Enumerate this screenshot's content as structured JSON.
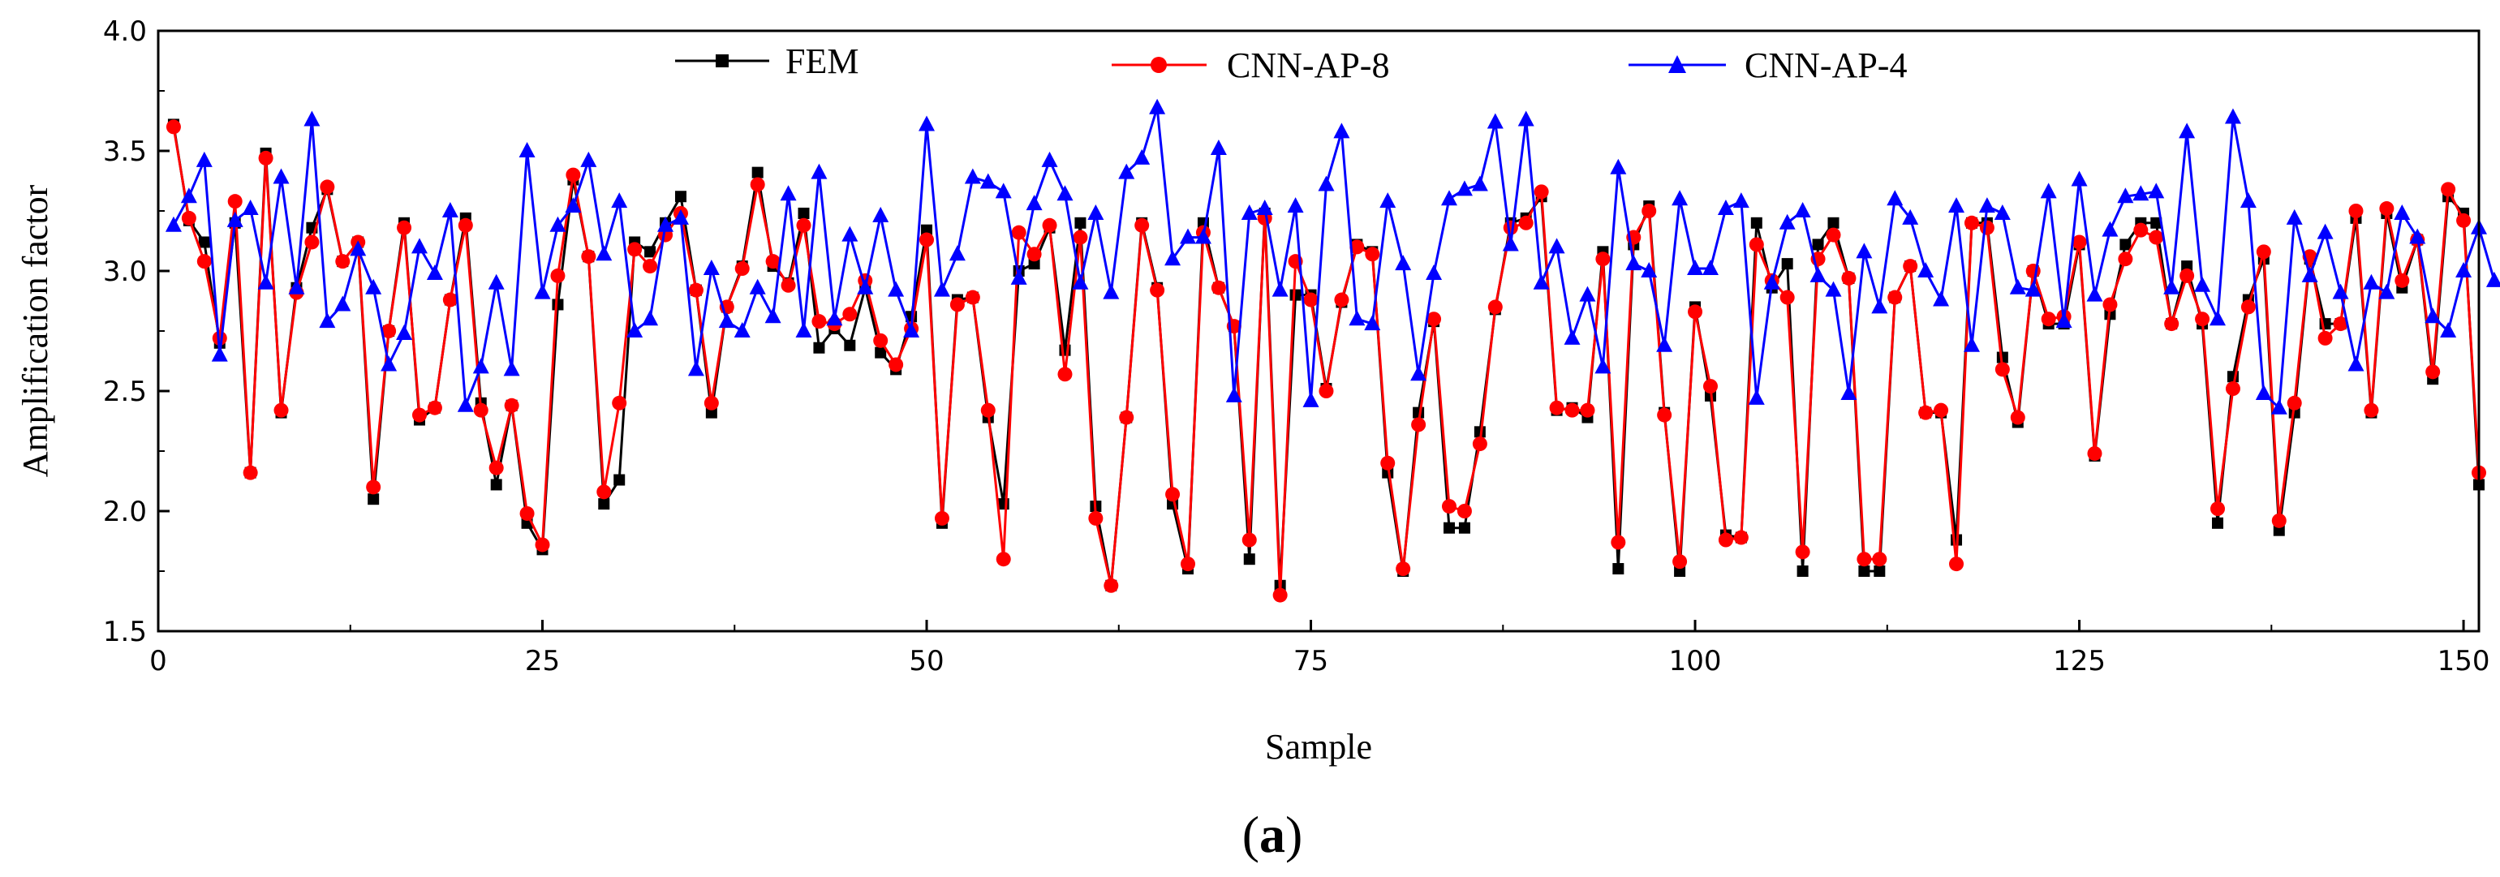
{
  "chart_data": {
    "type": "line",
    "title": "",
    "xlabel": "Sample",
    "ylabel": "Amplification factor",
    "xlim": [
      0,
      151
    ],
    "ylim": [
      1.5,
      4.0
    ],
    "xticks": [
      "0",
      "25",
      "50",
      "75",
      "100",
      "125",
      "150"
    ],
    "yticks": [
      "1.5",
      "2.0",
      "2.5",
      "3.0",
      "3.5",
      "4.0"
    ],
    "panel_label_open": "(",
    "panel_label_letter": "a",
    "panel_label_close": ")",
    "legend_position": "top",
    "series": [
      {
        "name": "FEM",
        "color": "#000000",
        "marker": "square",
        "values": [
          3.61,
          3.21,
          3.12,
          2.7,
          3.2,
          2.16,
          3.49,
          2.41,
          2.93,
          3.18,
          3.34,
          3.04,
          3.12,
          2.05,
          2.75,
          3.2,
          2.38,
          2.43,
          2.88,
          3.22,
          2.45,
          2.11,
          2.44,
          1.95,
          1.84,
          2.86,
          3.38,
          3.06,
          2.03,
          2.13,
          3.12,
          3.08,
          3.2,
          3.31,
          2.92,
          2.41,
          2.85,
          3.02,
          3.41,
          3.02,
          2.95,
          3.24,
          2.68,
          2.76,
          2.69,
          2.93,
          2.66,
          2.59,
          2.81,
          3.17,
          1.95,
          2.88,
          2.89,
          2.39,
          2.03,
          3.0,
          3.03,
          3.18,
          2.67,
          3.2,
          2.02,
          1.69,
          2.39,
          3.2,
          2.93,
          2.03,
          1.76,
          3.2,
          2.93,
          2.77,
          1.8,
          3.24,
          1.69,
          2.9,
          2.9,
          2.51,
          2.87,
          3.11,
          3.08,
          2.16,
          1.75,
          2.41,
          2.79,
          1.93,
          1.93,
          2.33,
          2.84,
          3.2,
          3.22,
          3.31,
          2.42,
          2.43,
          2.39,
          3.08,
          1.76,
          3.11,
          3.27,
          2.41,
          1.75,
          2.85,
          2.48,
          1.9,
          1.89,
          3.2,
          2.93,
          3.03,
          1.75,
          3.11,
          3.2,
          2.97,
          1.75,
          1.75,
          2.89,
          3.02,
          2.41,
          2.41,
          1.88,
          3.2,
          3.2,
          2.64,
          2.37,
          3.0,
          2.78,
          2.78,
          3.11,
          2.23,
          2.82,
          3.11,
          3.2,
          3.2,
          2.78,
          3.02,
          2.78,
          1.95,
          2.56,
          2.88,
          3.05,
          1.92,
          2.41,
          3.05,
          2.78,
          2.78,
          3.22,
          2.41,
          3.24,
          2.93,
          3.13,
          2.55,
          3.31,
          3.24,
          2.11
        ]
      },
      {
        "name": "CNN-AP-8",
        "color": "#ff0000",
        "marker": "circle",
        "values": [
          3.6,
          3.22,
          3.04,
          2.72,
          3.29,
          2.16,
          3.47,
          2.42,
          2.91,
          3.12,
          3.35,
          3.04,
          3.12,
          2.1,
          2.75,
          3.18,
          2.4,
          2.43,
          2.88,
          3.19,
          2.42,
          2.18,
          2.44,
          1.99,
          1.86,
          2.98,
          3.4,
          3.06,
          2.08,
          2.45,
          3.09,
          3.02,
          3.15,
          3.24,
          2.92,
          2.45,
          2.85,
          3.01,
          3.36,
          3.04,
          2.94,
          3.19,
          2.79,
          2.78,
          2.82,
          2.96,
          2.71,
          2.61,
          2.76,
          3.13,
          1.97,
          2.86,
          2.89,
          2.42,
          1.8,
          3.16,
          3.07,
          3.19,
          2.57,
          3.14,
          1.97,
          1.69,
          2.39,
          3.19,
          2.92,
          2.07,
          1.78,
          3.16,
          2.93,
          2.77,
          1.88,
          3.22,
          1.65,
          3.04,
          2.88,
          2.5,
          2.88,
          3.1,
          3.07,
          2.2,
          1.76,
          2.36,
          2.8,
          2.02,
          2.0,
          2.28,
          2.85,
          3.18,
          3.2,
          3.33,
          2.43,
          2.42,
          2.42,
          3.05,
          1.87,
          3.14,
          3.25,
          2.4,
          1.79,
          2.83,
          2.52,
          1.88,
          1.89,
          3.11,
          2.96,
          2.89,
          1.83,
          3.05,
          3.15,
          2.97,
          1.8,
          1.8,
          2.89,
          3.02,
          2.41,
          2.42,
          1.78,
          3.2,
          3.18,
          2.59,
          2.39,
          3.0,
          2.8,
          2.81,
          3.12,
          2.24,
          2.86,
          3.05,
          3.17,
          3.14,
          2.78,
          2.98,
          2.8,
          2.01,
          2.51,
          2.85,
          3.08,
          1.96,
          2.45,
          3.06,
          2.72,
          2.78,
          3.25,
          2.42,
          3.26,
          2.96,
          3.13,
          2.58,
          3.34,
          3.21,
          2.16
        ]
      },
      {
        "name": "CNN-AP-4",
        "color": "#0000ff",
        "marker": "triangle",
        "values": [
          3.19,
          3.31,
          3.46,
          2.65,
          3.21,
          3.26,
          2.95,
          3.39,
          2.93,
          3.63,
          2.79,
          2.86,
          3.09,
          2.93,
          2.61,
          2.74,
          3.1,
          2.99,
          3.25,
          2.44,
          2.6,
          2.95,
          2.59,
          3.5,
          2.91,
          3.19,
          3.27,
          3.46,
          3.07,
          3.29,
          2.75,
          2.8,
          3.19,
          3.22,
          2.59,
          3.01,
          2.79,
          2.75,
          2.93,
          2.81,
          3.32,
          2.75,
          3.41,
          2.8,
          3.15,
          2.93,
          3.23,
          2.92,
          2.75,
          3.61,
          2.92,
          3.07,
          3.39,
          3.37,
          3.33,
          2.97,
          3.28,
          3.46,
          3.32,
          2.95,
          3.24,
          2.91,
          3.41,
          3.47,
          3.68,
          3.05,
          3.14,
          3.14,
          3.51,
          2.48,
          3.24,
          3.26,
          2.92,
          3.27,
          2.46,
          3.36,
          3.58,
          2.8,
          2.78,
          3.29,
          3.03,
          2.57,
          2.99,
          3.3,
          3.34,
          3.36,
          3.62,
          3.11,
          3.63,
          2.95,
          3.1,
          2.72,
          2.9,
          2.6,
          3.43,
          3.03,
          3.0,
          2.69,
          3.3,
          3.01,
          3.01,
          3.26,
          3.29,
          2.47,
          2.95,
          3.2,
          3.25,
          2.98,
          2.92,
          2.49,
          3.08,
          2.85,
          3.3,
          3.22,
          3.0,
          2.88,
          3.27,
          2.69,
          3.27,
          3.24,
          2.93,
          2.92,
          3.33,
          2.79,
          3.38,
          2.9,
          3.17,
          3.31,
          3.32,
          3.33,
          2.93,
          3.58,
          2.94,
          2.8,
          3.64,
          3.29,
          2.49,
          2.43,
          3.22,
          2.98,
          3.16,
          2.91,
          2.61,
          2.95,
          2.91,
          3.24,
          3.14,
          2.81,
          2.75,
          3.0,
          3.18,
          2.96
        ]
      }
    ]
  }
}
